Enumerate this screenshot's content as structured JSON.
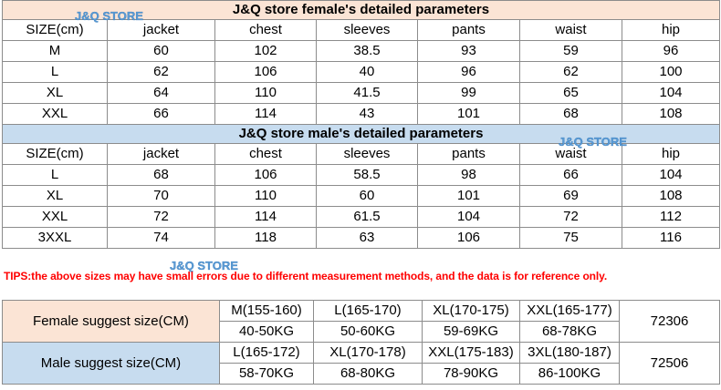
{
  "watermark": "J&Q STORE",
  "female": {
    "title": "J&Q store female's detailed parameters",
    "headers": [
      "SIZE(cm)",
      "jacket",
      "chest",
      "sleeves",
      "pants",
      "waist",
      "hip"
    ],
    "rows": [
      [
        "M",
        "60",
        "102",
        "38.5",
        "93",
        "59",
        "96"
      ],
      [
        "L",
        "62",
        "106",
        "40",
        "96",
        "62",
        "100"
      ],
      [
        "XL",
        "64",
        "110",
        "41.5",
        "99",
        "65",
        "104"
      ],
      [
        "XXL",
        "66",
        "114",
        "43",
        "101",
        "68",
        "108"
      ]
    ]
  },
  "male": {
    "title": "J&Q store male's detailed parameters",
    "headers": [
      "SIZE(cm)",
      "jacket",
      "chest",
      "sleeves",
      "pants",
      "waist",
      "hip"
    ],
    "rows": [
      [
        "L",
        "68",
        "106",
        "58.5",
        "98",
        "66",
        "104"
      ],
      [
        "XL",
        "70",
        "110",
        "60",
        "101",
        "69",
        "108"
      ],
      [
        "XXL",
        "72",
        "114",
        "61.5",
        "104",
        "72",
        "112"
      ],
      [
        "3XXL",
        "74",
        "118",
        "63",
        "106",
        "75",
        "116"
      ]
    ]
  },
  "tips": "TIPS:the above sizes may have small errors due to different measurement methods, and the data is for reference only.",
  "suggest": {
    "female": {
      "label": "Female suggest size(CM)",
      "sizes": [
        "M(155-160)",
        "L(165-170)",
        "XL(170-175)",
        "XXL(165-177)"
      ],
      "weights": [
        "40-50KG",
        "50-60KG",
        "59-69KG",
        "68-78KG"
      ],
      "code": "72306"
    },
    "male": {
      "label": "Male suggest size(CM)",
      "sizes": [
        "L(165-172)",
        "XL(170-178)",
        "XXL(175-183)",
        "3XL(180-187)"
      ],
      "weights": [
        "58-70KG",
        "68-80KG",
        "78-90KG",
        "86-100KG"
      ],
      "code": "72506"
    }
  }
}
